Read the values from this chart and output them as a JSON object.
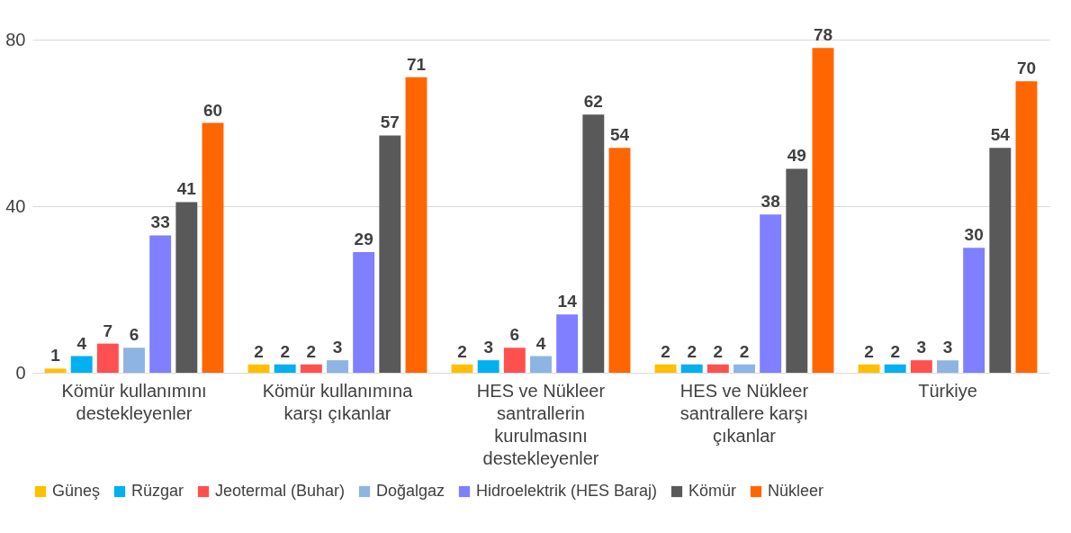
{
  "chart_data": {
    "type": "bar",
    "categories": [
      "Kömür kullanımını destekleyenler",
      "Kömür kullanımına karşı çıkanlar",
      "HES ve Nükleer santrallerin kurulmasını destekleyenler",
      "HES ve Nükleer santrallere karşı çıkanlar",
      "Türkiye"
    ],
    "series": [
      {
        "name": "Güneş",
        "color": "#ffc000",
        "values": [
          1,
          2,
          2,
          2,
          2
        ]
      },
      {
        "name": "Rüzgar",
        "color": "#00b0f0",
        "values": [
          4,
          2,
          3,
          2,
          2
        ]
      },
      {
        "name": "Jeotermal (Buhar)",
        "color": "#ff5050",
        "values": [
          7,
          2,
          6,
          2,
          3
        ]
      },
      {
        "name": "Doğalgaz",
        "color": "#8eb4e3",
        "values": [
          6,
          3,
          4,
          2,
          3
        ]
      },
      {
        "name": "Hidroelektrik (HES Baraj)",
        "color": "#7f7fff",
        "values": [
          33,
          29,
          14,
          38,
          30
        ]
      },
      {
        "name": "Kömür",
        "color": "#595959",
        "values": [
          41,
          57,
          62,
          49,
          54
        ]
      },
      {
        "name": "Nükleer",
        "color": "#ff6600",
        "values": [
          60,
          71,
          54,
          78,
          70
        ]
      }
    ],
    "ylim": [
      0,
      80
    ],
    "yticks": [
      0,
      40,
      80
    ],
    "grid": "y",
    "legend": "bottom",
    "data_labels": true
  }
}
